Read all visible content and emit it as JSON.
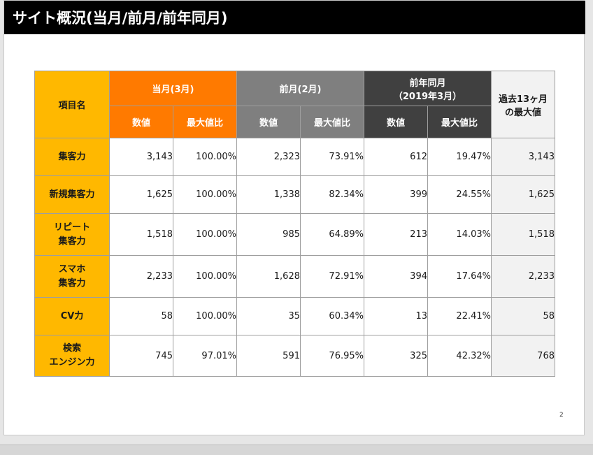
{
  "title": "サイト概況(当月/前月/前年同月)",
  "headers": {
    "item_name": "項目名",
    "current": "当月(3月)",
    "previous": "前月(2月)",
    "year_ago_line1": "前年同月",
    "year_ago_line2": "（2019年3月）",
    "max13_line1": "過去13ヶ月",
    "max13_line2": "の最大値",
    "value": "数値",
    "max_ratio": "最大値比"
  },
  "rows": [
    {
      "label_line1": "集客力",
      "label_line2": "",
      "cur_value": "3,143",
      "cur_ratio": "100.00%",
      "prev_value": "2,323",
      "prev_ratio": "73.91%",
      "yoy_value": "612",
      "yoy_ratio": "19.47%",
      "max13": "3,143"
    },
    {
      "label_line1": "新規集客力",
      "label_line2": "",
      "cur_value": "1,625",
      "cur_ratio": "100.00%",
      "prev_value": "1,338",
      "prev_ratio": "82.34%",
      "yoy_value": "399",
      "yoy_ratio": "24.55%",
      "max13": "1,625"
    },
    {
      "label_line1": "リピート",
      "label_line2": "集客力",
      "cur_value": "1,518",
      "cur_ratio": "100.00%",
      "prev_value": "985",
      "prev_ratio": "64.89%",
      "yoy_value": "213",
      "yoy_ratio": "14.03%",
      "max13": "1,518"
    },
    {
      "label_line1": "スマホ",
      "label_line2": "集客力",
      "cur_value": "2,233",
      "cur_ratio": "100.00%",
      "prev_value": "1,628",
      "prev_ratio": "72.91%",
      "yoy_value": "394",
      "yoy_ratio": "17.64%",
      "max13": "2,233"
    },
    {
      "label_line1": "CV力",
      "label_line2": "",
      "cur_value": "58",
      "cur_ratio": "100.00%",
      "prev_value": "35",
      "prev_ratio": "60.34%",
      "yoy_value": "13",
      "yoy_ratio": "22.41%",
      "max13": "58"
    },
    {
      "label_line1": "検索",
      "label_line2": "エンジン力",
      "cur_value": "745",
      "cur_ratio": "97.01%",
      "prev_value": "591",
      "prev_ratio": "76.95%",
      "yoy_value": "325",
      "yoy_ratio": "42.32%",
      "max13": "768"
    }
  ],
  "page_number": "2",
  "colors": {
    "title_bar": "#000000",
    "label_yellow": "#ffb800",
    "current_orange": "#ff7a00",
    "previous_gray": "#7f7f7f",
    "year_ago_dark": "#404040",
    "max_light": "#f2f2f2"
  }
}
